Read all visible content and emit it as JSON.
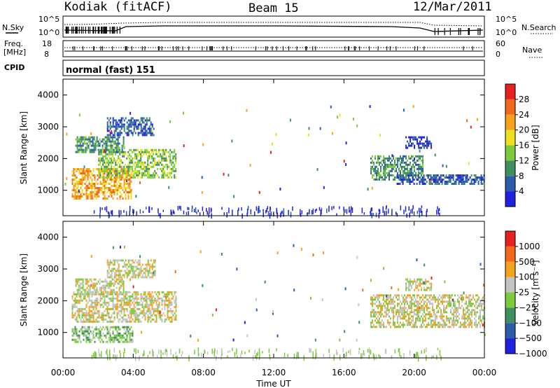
{
  "header": {
    "station": "Kodiak (fitACF)",
    "beam": "Beam 15",
    "date": "12/Mar/2011"
  },
  "top_panels": {
    "nsky_label": "N.Sky",
    "nsearch_label": "N.Search",
    "noise_ticks": [
      "10^5",
      "10^0"
    ],
    "freq_label": "Freq.",
    "freq_unit": "[MHz]",
    "freq_ticks": [
      "18",
      "8"
    ],
    "nave_label": "Nave",
    "nave_ticks": [
      "60",
      "0"
    ],
    "cpid_label": "CPID",
    "cpid_value": "normal (fast) 151"
  },
  "x_axis": {
    "ticks": [
      "00:00",
      "04:00",
      "08:00",
      "12:00",
      "16:00",
      "20:00",
      "00:00"
    ],
    "label": "Time UT"
  },
  "colors": {
    "power_scale": [
      "#2020e0",
      "#2b5dab",
      "#3f8f5f",
      "#7ccb3c",
      "#ece020",
      "#f7a21b",
      "#f06a1a",
      "#e81f1f"
    ],
    "velocity_scale": [
      "#2020e0",
      "#2b5dab",
      "#3f8f5f",
      "#7ccb3c",
      "#c4c4c4",
      "#f7a21b",
      "#f06a1a",
      "#e81f1f"
    ]
  },
  "chart_data": [
    {
      "type": "heatmap",
      "panel": "power",
      "ylabel": "Slant Range [km]",
      "yticks": [
        1000,
        2000,
        3000,
        4000
      ],
      "ylim": [
        200,
        4500
      ],
      "xlim_hours": [
        0,
        24
      ],
      "colorbar_label": "Power [dB]",
      "colorbar_ticks": [
        "28",
        "24",
        "20",
        "16",
        "12",
        "8",
        "4"
      ],
      "regions": [
        {
          "t0": 0.5,
          "t1": 3.9,
          "r0": 700,
          "r1": 1700,
          "level": 5
        },
        {
          "t0": 2.0,
          "t1": 6.5,
          "r0": 1400,
          "r1": 2300,
          "level": 3
        },
        {
          "t0": 0.7,
          "t1": 3.5,
          "r0": 2200,
          "r1": 2700,
          "level": 2
        },
        {
          "t0": 2.5,
          "t1": 5.2,
          "r0": 2700,
          "r1": 3300,
          "level": 1
        },
        {
          "t0": 17.5,
          "t1": 20.5,
          "r0": 1300,
          "r1": 2100,
          "level": 2
        },
        {
          "t0": 19.0,
          "t1": 24.0,
          "r0": 1150,
          "r1": 1500,
          "level": 1
        },
        {
          "t0": 19.5,
          "t1": 21.0,
          "r0": 2300,
          "r1": 2700,
          "level": 0
        }
      ]
    },
    {
      "type": "heatmap",
      "panel": "velocity",
      "ylabel": "Slant Range [km]",
      "yticks": [
        1000,
        2000,
        3000,
        4000
      ],
      "ylim": [
        200,
        4500
      ],
      "xlim_hours": [
        0,
        24
      ],
      "colorbar_label": "Velocity [m s⁻¹]",
      "colorbar_ticks": [
        "1000",
        "500",
        "100",
        "25",
        "−25",
        "−100",
        "−500",
        "−1000"
      ],
      "regions": [
        {
          "t0": 0.5,
          "t1": 4.0,
          "r0": 650,
          "r1": 1200,
          "level": 3
        },
        {
          "t0": 0.5,
          "t1": 6.5,
          "r0": 1300,
          "r1": 2300,
          "level": 4
        },
        {
          "t0": 0.7,
          "t1": 3.5,
          "r0": 2200,
          "r1": 2700,
          "level": 4
        },
        {
          "t0": 2.5,
          "t1": 5.3,
          "r0": 2700,
          "r1": 3300,
          "level": 4
        },
        {
          "t0": 17.5,
          "t1": 24.0,
          "r0": 1150,
          "r1": 2200,
          "level": 4
        },
        {
          "t0": 19.5,
          "t1": 21.0,
          "r0": 2300,
          "r1": 2700,
          "level": 4
        }
      ]
    }
  ]
}
